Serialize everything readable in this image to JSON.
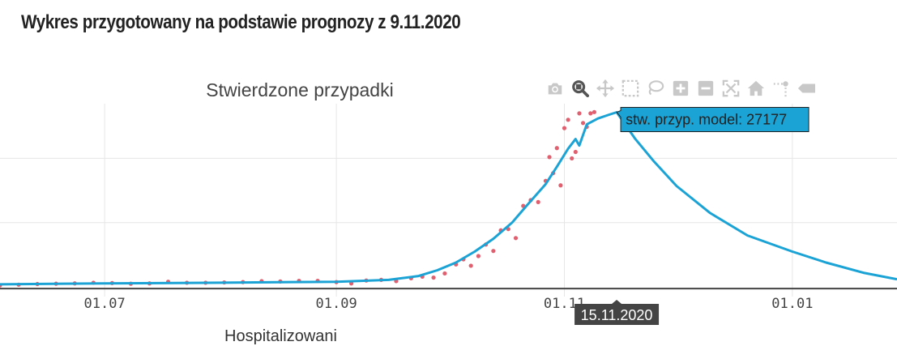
{
  "page": {
    "heading": "Wykres przygotowany na podstawie prognozy z 9.11.2020",
    "next_chart_title_partial": "Hospitalizowani"
  },
  "toolbar": {
    "icons": [
      "camera-icon",
      "zoom-icon",
      "pan-icon",
      "box-select-icon",
      "lasso-select-icon",
      "zoom-in-icon",
      "zoom-out-icon",
      "autoscale-icon",
      "reset-axes-icon",
      "spike-lines-icon",
      "compare-hover-icon"
    ],
    "active": "zoom-icon"
  },
  "colors": {
    "model_line": "#1ba3d6",
    "observed_points": "#e06070",
    "tooltip_bg": "#1ba3d6",
    "axis_tooltip_bg": "#444444",
    "grid": "#e6e6e6",
    "toolbar_icon": "#c8c8c8",
    "toolbar_icon_active": "#555555"
  },
  "chart_data": {
    "type": "line",
    "title": "Stwierdzone przypadki",
    "xlabel": "",
    "ylabel": "",
    "x_ticks": [
      "01.07",
      "01.09",
      "01.11",
      "01.01"
    ],
    "x_tick_dates": [
      "2020-07-01",
      "2020-09-01",
      "2020-11-01",
      "2021-01-01"
    ],
    "xlim": [
      "2020-06-03",
      "2021-01-29"
    ],
    "ylim": [
      -1500,
      28500
    ],
    "y_gridlines": [
      0,
      10000,
      20000
    ],
    "grid": true,
    "legend": "none",
    "hover": {
      "label": "stw. przyp. model: 27177",
      "x_label": "15.11.2020",
      "x": "2020-11-15",
      "y": 27177
    },
    "series": [
      {
        "name": "stw. przyp. model",
        "mode": "line",
        "x": [
          "2020-06-03",
          "2020-06-20",
          "2020-07-01",
          "2020-07-20",
          "2020-08-01",
          "2020-08-20",
          "2020-09-01",
          "2020-09-15",
          "2020-09-23",
          "2020-09-28",
          "2020-10-03",
          "2020-10-08",
          "2020-10-13",
          "2020-10-18",
          "2020-10-22",
          "2020-10-27",
          "2020-10-30",
          "2020-11-02",
          "2020-11-04",
          "2020-11-05",
          "2020-11-07",
          "2020-11-10",
          "2020-11-13",
          "2020-11-15",
          "2020-11-17",
          "2020-11-20",
          "2020-11-25",
          "2020-12-01",
          "2020-12-10",
          "2020-12-20",
          "2021-01-01",
          "2021-01-10",
          "2021-01-20",
          "2021-01-29"
        ],
        "y": [
          400,
          500,
          550,
          600,
          650,
          750,
          800,
          1100,
          1700,
          2600,
          3800,
          5500,
          7500,
          10000,
          12700,
          16000,
          18700,
          21500,
          23000,
          22000,
          25300,
          26200,
          26800,
          27177,
          25500,
          23000,
          19500,
          15700,
          11500,
          8000,
          5500,
          3800,
          2200,
          1200
        ]
      },
      {
        "name": "stwierdzone przypadki",
        "mode": "markers",
        "x": [
          "2020-06-03",
          "2020-06-08",
          "2020-06-13",
          "2020-06-18",
          "2020-06-23",
          "2020-06-28",
          "2020-07-03",
          "2020-07-08",
          "2020-07-13",
          "2020-07-18",
          "2020-07-23",
          "2020-07-28",
          "2020-08-02",
          "2020-08-07",
          "2020-08-12",
          "2020-08-17",
          "2020-08-22",
          "2020-08-27",
          "2020-09-01",
          "2020-09-05",
          "2020-09-09",
          "2020-09-13",
          "2020-09-17",
          "2020-09-21",
          "2020-09-24",
          "2020-09-27",
          "2020-09-30",
          "2020-10-03",
          "2020-10-05",
          "2020-10-07",
          "2020-10-09",
          "2020-10-11",
          "2020-10-13",
          "2020-10-15",
          "2020-10-17",
          "2020-10-19",
          "2020-10-21",
          "2020-10-23",
          "2020-10-25",
          "2020-10-27",
          "2020-10-28",
          "2020-10-29",
          "2020-10-30",
          "2020-10-31",
          "2020-11-01",
          "2020-11-02",
          "2020-11-03",
          "2020-11-04",
          "2020-11-05",
          "2020-11-06",
          "2020-11-07",
          "2020-11-08",
          "2020-11-09"
        ],
        "y": [
          250,
          350,
          450,
          500,
          550,
          650,
          600,
          500,
          550,
          800,
          650,
          650,
          700,
          750,
          900,
          850,
          950,
          950,
          750,
          550,
          1000,
          1100,
          900,
          1350,
          1600,
          1450,
          2100,
          3500,
          4300,
          3300,
          4800,
          6600,
          5600,
          8800,
          9000,
          7600,
          12600,
          13500,
          13200,
          16500,
          20200,
          17700,
          21600,
          15800,
          24700,
          26000,
          20000,
          21000,
          27000,
          25500,
          24900,
          27000,
          27200
        ]
      }
    ]
  }
}
